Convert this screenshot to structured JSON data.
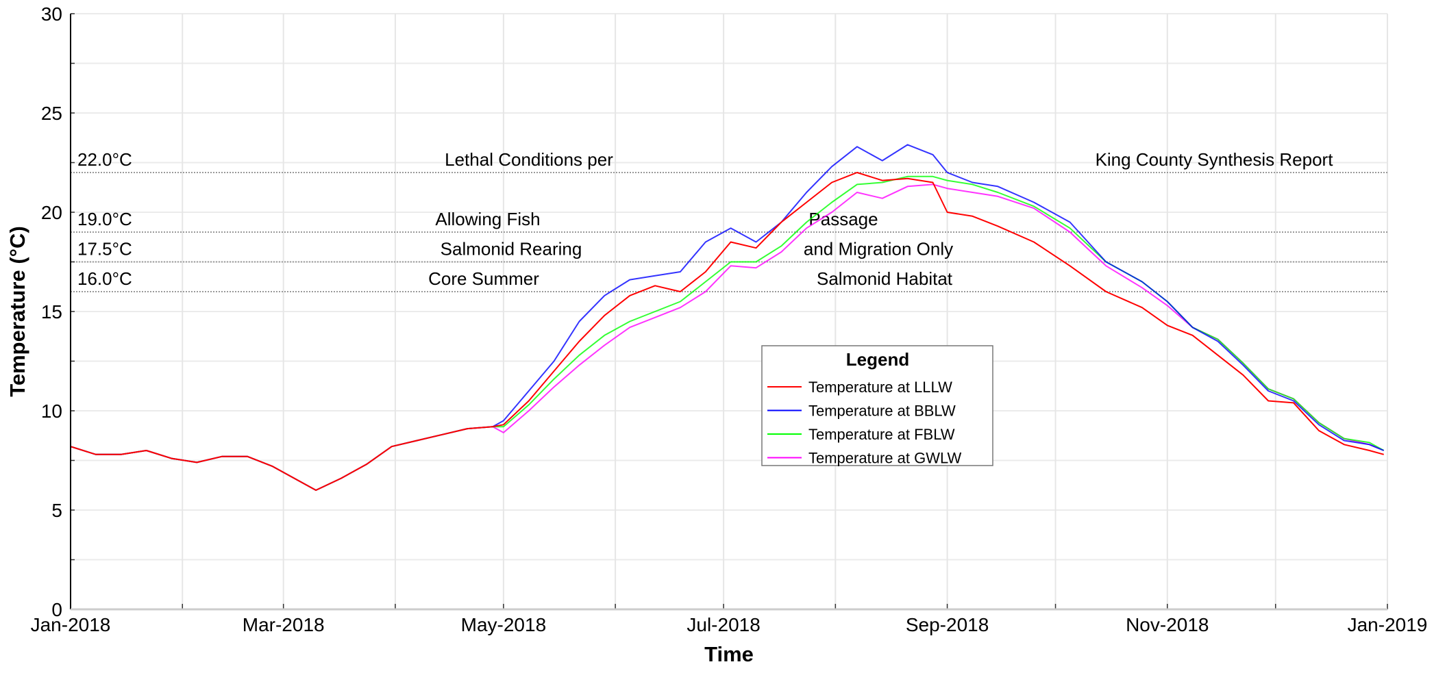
{
  "chart_data": {
    "type": "line",
    "xlabel": "Time",
    "ylabel": "Temperature (°C)",
    "ylim": [
      0,
      30
    ],
    "xlim": [
      "2018-01-01",
      "2019-01-01"
    ],
    "yticks": [
      "0",
      "5",
      "10",
      "15",
      "20",
      "25",
      "30"
    ],
    "xtick_labels": [
      {
        "date": "2018-01-01",
        "label": "Jan-2018"
      },
      {
        "date": "2018-03-01",
        "label": "Mar-2018"
      },
      {
        "date": "2018-05-01",
        "label": "May-2018"
      },
      {
        "date": "2018-07-01",
        "label": "Jul-2018"
      },
      {
        "date": "2018-09-01",
        "label": "Sep-2018"
      },
      {
        "date": "2018-11-01",
        "label": "Nov-2018"
      },
      {
        "date": "2019-01-01",
        "label": "Jan-2019"
      }
    ],
    "grid": true,
    "legend": {
      "title": "Legend",
      "placement": "center-right"
    },
    "x": [
      "2018-01-01",
      "2018-01-08",
      "2018-01-15",
      "2018-01-22",
      "2018-01-29",
      "2018-02-05",
      "2018-02-12",
      "2018-02-19",
      "2018-02-26",
      "2018-03-05",
      "2018-03-10",
      "2018-03-17",
      "2018-03-24",
      "2018-03-31",
      "2018-04-07",
      "2018-04-14",
      "2018-04-21",
      "2018-04-28",
      "2018-05-01",
      "2018-05-08",
      "2018-05-15",
      "2018-05-22",
      "2018-05-29",
      "2018-06-05",
      "2018-06-12",
      "2018-06-19",
      "2018-06-26",
      "2018-07-03",
      "2018-07-10",
      "2018-07-17",
      "2018-07-24",
      "2018-07-31",
      "2018-08-07",
      "2018-08-14",
      "2018-08-21",
      "2018-08-28",
      "2018-09-01",
      "2018-09-08",
      "2018-09-15",
      "2018-09-25",
      "2018-10-05",
      "2018-10-15",
      "2018-10-25",
      "2018-11-01",
      "2018-11-08",
      "2018-11-15",
      "2018-11-22",
      "2018-11-29",
      "2018-12-06",
      "2018-12-13",
      "2018-12-20",
      "2018-12-27",
      "2018-12-31"
    ],
    "series": [
      {
        "name": "Temperature at LLLW",
        "color": "#ff0000",
        "values": [
          8.2,
          7.8,
          7.8,
          8.0,
          7.6,
          7.4,
          7.7,
          7.7,
          7.2,
          6.5,
          6.0,
          6.6,
          7.3,
          8.2,
          8.5,
          8.8,
          9.1,
          9.2,
          9.3,
          10.5,
          12.0,
          13.5,
          14.8,
          15.8,
          16.3,
          16.0,
          17.0,
          18.5,
          18.2,
          19.5,
          20.5,
          21.5,
          22.0,
          21.6,
          21.7,
          21.5,
          20.0,
          19.8,
          19.3,
          18.5,
          17.3,
          16.0,
          15.2,
          14.3,
          13.8,
          12.8,
          11.8,
          10.5,
          10.4,
          9.0,
          8.3,
          8.0,
          7.8
        ]
      },
      {
        "name": "Temperature at BBLW",
        "color": "#0000ff",
        "values": [
          8.2,
          7.8,
          7.8,
          8.0,
          7.6,
          7.4,
          7.7,
          7.7,
          7.2,
          6.5,
          6.0,
          6.6,
          7.3,
          8.2,
          8.5,
          8.8,
          9.1,
          9.2,
          9.5,
          11.0,
          12.5,
          14.5,
          15.8,
          16.6,
          16.8,
          17.0,
          18.5,
          19.2,
          18.5,
          19.5,
          21.0,
          22.3,
          23.3,
          22.6,
          23.4,
          22.9,
          22.0,
          21.5,
          21.3,
          20.5,
          19.5,
          17.5,
          16.5,
          15.5,
          14.2,
          13.5,
          12.3,
          11.0,
          10.5,
          9.3,
          8.5,
          8.3,
          8.0
        ]
      },
      {
        "name": "Temperature at FBLW",
        "color": "#00ff00",
        "values": [
          8.2,
          7.8,
          7.8,
          8.0,
          7.6,
          7.4,
          7.7,
          7.7,
          7.2,
          6.5,
          6.0,
          6.6,
          7.3,
          8.2,
          8.5,
          8.8,
          9.1,
          9.2,
          9.2,
          10.3,
          11.6,
          12.8,
          13.8,
          14.5,
          15.0,
          15.5,
          16.5,
          17.5,
          17.5,
          18.3,
          19.5,
          20.5,
          21.4,
          21.5,
          21.8,
          21.8,
          21.6,
          21.4,
          21.0,
          20.3,
          19.2,
          17.5,
          16.5,
          15.5,
          14.2,
          13.6,
          12.4,
          11.1,
          10.6,
          9.4,
          8.6,
          8.4,
          8.0
        ]
      },
      {
        "name": "Temperature at GWLW",
        "color": "#ff00ff",
        "values": [
          8.2,
          7.8,
          7.8,
          8.0,
          7.6,
          7.4,
          7.7,
          7.7,
          7.2,
          6.5,
          6.0,
          6.6,
          7.3,
          8.2,
          8.5,
          8.8,
          9.1,
          9.2,
          8.9,
          10.0,
          11.2,
          12.3,
          13.3,
          14.2,
          14.7,
          15.2,
          16.0,
          17.3,
          17.2,
          18.0,
          19.2,
          20.0,
          21.0,
          20.7,
          21.3,
          21.4,
          21.2,
          21.0,
          20.8,
          20.2,
          19.0,
          17.3,
          16.2,
          15.3,
          14.2,
          13.6,
          12.4,
          11.1,
          10.6,
          9.4,
          8.6,
          8.3,
          8.0
        ]
      }
    ],
    "reference_lines": [
      {
        "value": 22.0,
        "label": "22.0°C",
        "left_text": "Lethal Conditions per",
        "right_text": "King County Synthesis Report"
      },
      {
        "value": 19.0,
        "label": "19.0°C",
        "left_text": "Allowing Fish",
        "right_text": "Passage"
      },
      {
        "value": 17.5,
        "label": "17.5°C",
        "left_text": "Salmonid Rearing",
        "right_text": "and Migration Only"
      },
      {
        "value": 16.0,
        "label": "16.0°C",
        "left_text": "Core Summer",
        "right_text": "Salmonid Habitat"
      }
    ]
  }
}
